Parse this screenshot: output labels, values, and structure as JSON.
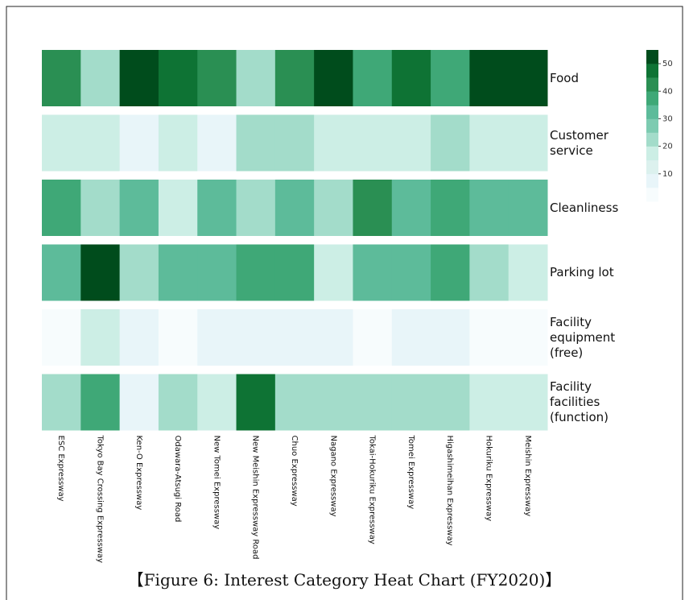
{
  "chart_data": {
    "type": "heatmap",
    "caption": "【Figure 6: Interest Category Heat Chart (FY2020)】",
    "rows": [
      "Food",
      "Customer service",
      "Cleanliness",
      "Parking lot",
      "Facility equipment (free)",
      "Facility facilities (function)"
    ],
    "columns": [
      "ESC Expressway",
      "Tokyo Bay Crossing Expressway",
      "Ken-O Expressway",
      "Odawara-Atsugi Road",
      "New Tomei Expressway",
      "New Meishin Expressway Road",
      "Chuo Expressway",
      "Nagano Expressway",
      "Tokai-Hokuriku Expressway",
      "Tomei Expressway",
      "Higashimeihan Expressway",
      "Hokuriku Expressway",
      "Meishin Expressway"
    ],
    "values": [
      [
        40,
        20,
        55,
        45,
        40,
        20,
        40,
        55,
        35,
        45,
        35,
        55,
        55
      ],
      [
        15,
        15,
        5,
        15,
        5,
        20,
        20,
        15,
        15,
        15,
        20,
        15,
        15
      ],
      [
        35,
        20,
        30,
        15,
        30,
        20,
        30,
        20,
        40,
        30,
        35,
        30,
        30
      ],
      [
        30,
        55,
        20,
        30,
        30,
        35,
        35,
        15,
        30,
        30,
        35,
        20,
        15
      ],
      [
        2,
        15,
        5,
        2,
        5,
        5,
        5,
        5,
        2,
        5,
        5,
        2,
        2
      ],
      [
        20,
        35,
        5,
        20,
        15,
        45,
        20,
        20,
        20,
        20,
        20,
        15,
        15
      ]
    ],
    "zlim": [
      0,
      55
    ],
    "zticks": [
      10,
      20,
      30,
      40,
      50
    ],
    "colors": [
      "#f7fcfd",
      "#e8f5f9",
      "#dcf1ee",
      "#cceee5",
      "#a3dcca",
      "#7dcbb1",
      "#5dbb9a",
      "#3fa877",
      "#2a8f53",
      "#0e7334",
      "#004c1c"
    ]
  }
}
